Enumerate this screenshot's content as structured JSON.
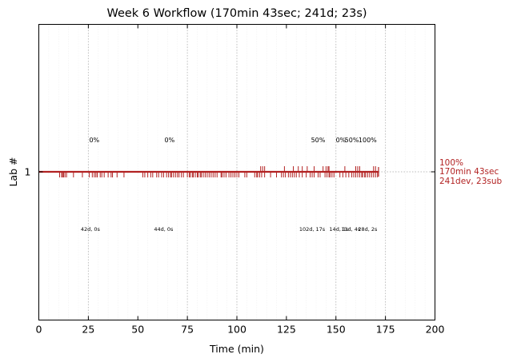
{
  "colors": {
    "accent": "#b22222",
    "grid": "#bbbbbb",
    "minorgrid": "#e8e8e8"
  },
  "chart_data": {
    "type": "line",
    "title": "Week 6 Workflow (170min 43sec; 241d; 23s)",
    "xlabel": "Time (min)",
    "ylabel": "Lab #",
    "xlim": [
      0,
      200
    ],
    "xticks": [
      "0",
      "25",
      "50",
      "75",
      "100",
      "125",
      "150",
      "175",
      "200"
    ],
    "yticks": [
      "1"
    ],
    "grid": "dotted vertical lines at checkpoints and ticks",
    "lab_y": 1,
    "end_time": 171.5,
    "checkpoints": [
      25,
      75,
      100,
      150,
      175
    ],
    "phases": [
      {
        "pct": "0%",
        "stats": "42d, 0s",
        "pct_x": 28,
        "stats_x": 26
      },
      {
        "pct": "0%",
        "stats": "44d, 0s",
        "pct_x": 66,
        "stats_x": 63
      },
      {
        "pct": "50%",
        "stats": "102d, 17s",
        "pct_x": 141,
        "stats_x": 138
      },
      {
        "pct": "0%",
        "stats": "14d, 1s",
        "pct_x": 152.5,
        "stats_x": 151.5
      },
      {
        "pct": "50%",
        "stats": "11d, 4s",
        "pct_x": 158,
        "stats_x": 157.5
      },
      {
        "pct": "100%",
        "stats": "28d, 2s",
        "pct_x": 166,
        "stats_x": 166
      }
    ],
    "events": {
      "devs": [
        10.5,
        11.5,
        12,
        12.5,
        13.2,
        14,
        17.5,
        22,
        25.5,
        27,
        28,
        28.8,
        29.5,
        31,
        31.8,
        33,
        35,
        36.5,
        37.2,
        39.5,
        43,
        52.5,
        53.5,
        55,
        56.5,
        57.5,
        59.5,
        60.5,
        62,
        63,
        64.5,
        65.5,
        66.5,
        67,
        68,
        69,
        70,
        70.8,
        72,
        73,
        75,
        76,
        76.5,
        77.5,
        78,
        79,
        80,
        80.5,
        81.5,
        82,
        83,
        84,
        85,
        86,
        87,
        88,
        89,
        90,
        92,
        92.5,
        93.5,
        94.5,
        96,
        97,
        98,
        99,
        100,
        101,
        104,
        105,
        109,
        110,
        110.5,
        111.5,
        112.5,
        114,
        117,
        120,
        122.5,
        123.5,
        124.5,
        126,
        127,
        128,
        129,
        130,
        131.5,
        133,
        135,
        137,
        138,
        139,
        141,
        142,
        144.5,
        145.5,
        146.5,
        147,
        148,
        149,
        152,
        153.5,
        155,
        156.5,
        158,
        159,
        160,
        161,
        162,
        163,
        163.5,
        164.5,
        165,
        166,
        167,
        168,
        169,
        170,
        171
      ],
      "subs": [
        112,
        113,
        114,
        124,
        128.5,
        131,
        133,
        135.5,
        139,
        143.5,
        145,
        146,
        146.5,
        154.5,
        160,
        161,
        162,
        169,
        170
      ]
    },
    "summary": {
      "pct": "100%",
      "time": "170min 43sec",
      "counts": "241dev, 23sub"
    }
  }
}
